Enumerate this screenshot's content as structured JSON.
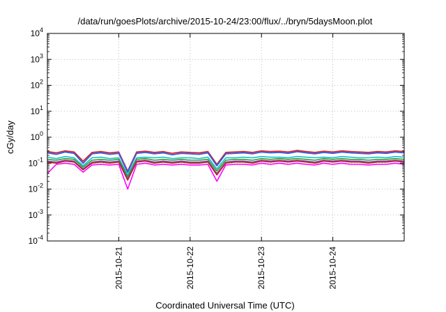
{
  "chart_data": {
    "type": "line",
    "title": "/data/run/goesPlots/archive/2015-10-24/23:00/flux/../bryn/5daysMoon.plot",
    "xlabel": "Coordinated Universal Time (UTC)",
    "ylabel": "cGy/day",
    "yscale": "log",
    "ylim": [
      0.0001,
      10000
    ],
    "xlim": [
      "2015-10-20T00:00",
      "2015-10-25T00:00"
    ],
    "grid": true,
    "y_ticks": [
      {
        "base": "10",
        "exp": "-4"
      },
      {
        "base": "10",
        "exp": "-3"
      },
      {
        "base": "10",
        "exp": "-2"
      },
      {
        "base": "10",
        "exp": "-1"
      },
      {
        "base": "10",
        "exp": "0"
      },
      {
        "base": "10",
        "exp": "1"
      },
      {
        "base": "10",
        "exp": "2"
      },
      {
        "base": "10",
        "exp": "3"
      },
      {
        "base": "10",
        "exp": "4"
      }
    ],
    "x_ticks": [
      "2015-10-21",
      "2015-10-22",
      "2015-10-23",
      "2015-10-24"
    ],
    "x": [
      "2015-10-20T00:00",
      "2015-10-20T03:00",
      "2015-10-20T06:00",
      "2015-10-20T09:00",
      "2015-10-20T12:00",
      "2015-10-20T15:00",
      "2015-10-20T18:00",
      "2015-10-20T21:00",
      "2015-10-21T00:00",
      "2015-10-21T03:00",
      "2015-10-21T06:00",
      "2015-10-21T09:00",
      "2015-10-21T12:00",
      "2015-10-21T15:00",
      "2015-10-21T18:00",
      "2015-10-21T21:00",
      "2015-10-22T00:00",
      "2015-10-22T03:00",
      "2015-10-22T06:00",
      "2015-10-22T09:00",
      "2015-10-22T12:00",
      "2015-10-22T15:00",
      "2015-10-22T18:00",
      "2015-10-22T21:00",
      "2015-10-23T00:00",
      "2015-10-23T03:00",
      "2015-10-23T06:00",
      "2015-10-23T09:00",
      "2015-10-23T12:00",
      "2015-10-23T15:00",
      "2015-10-23T18:00",
      "2015-10-23T21:00",
      "2015-10-24T00:00",
      "2015-10-24T03:00",
      "2015-10-24T06:00",
      "2015-10-24T09:00",
      "2015-10-24T12:00",
      "2015-10-24T15:00",
      "2015-10-24T18:00",
      "2015-10-24T21:00",
      "2015-10-25T00:00"
    ],
    "series": [
      {
        "color": "#e41a1c",
        "values": [
          0.28,
          0.25,
          0.3,
          0.27,
          0.12,
          0.26,
          0.28,
          0.25,
          0.27,
          0.05,
          0.27,
          0.29,
          0.26,
          0.28,
          0.24,
          0.27,
          0.26,
          0.25,
          0.28,
          0.09,
          0.26,
          0.27,
          0.28,
          0.26,
          0.3,
          0.28,
          0.29,
          0.27,
          0.31,
          0.28,
          0.26,
          0.29,
          0.27,
          0.3,
          0.28,
          0.27,
          0.26,
          0.28,
          0.27,
          0.3,
          0.28
        ]
      },
      {
        "color": "#3a5bd9",
        "values": [
          0.25,
          0.22,
          0.27,
          0.24,
          0.1,
          0.23,
          0.25,
          0.22,
          0.24,
          0.045,
          0.24,
          0.26,
          0.23,
          0.25,
          0.21,
          0.24,
          0.23,
          0.22,
          0.25,
          0.08,
          0.23,
          0.24,
          0.25,
          0.23,
          0.27,
          0.25,
          0.26,
          0.24,
          0.28,
          0.25,
          0.23,
          0.26,
          0.24,
          0.27,
          0.25,
          0.24,
          0.23,
          0.25,
          0.24,
          0.27,
          0.25
        ]
      },
      {
        "color": "#17becf",
        "values": [
          0.17,
          0.15,
          0.18,
          0.16,
          0.08,
          0.16,
          0.17,
          0.15,
          0.16,
          0.035,
          0.16,
          0.17,
          0.16,
          0.17,
          0.15,
          0.16,
          0.16,
          0.15,
          0.17,
          0.06,
          0.16,
          0.16,
          0.17,
          0.16,
          0.18,
          0.17,
          0.17,
          0.16,
          0.18,
          0.17,
          0.16,
          0.17,
          0.16,
          0.18,
          0.17,
          0.16,
          0.16,
          0.17,
          0.16,
          0.18,
          0.17
        ]
      },
      {
        "color": "#2ca02c",
        "values": [
          0.14,
          0.13,
          0.15,
          0.14,
          0.07,
          0.13,
          0.14,
          0.13,
          0.14,
          0.03,
          0.14,
          0.15,
          0.13,
          0.14,
          0.13,
          0.14,
          0.13,
          0.13,
          0.14,
          0.05,
          0.13,
          0.14,
          0.14,
          0.13,
          0.15,
          0.14,
          0.15,
          0.14,
          0.15,
          0.14,
          0.13,
          0.15,
          0.14,
          0.15,
          0.14,
          0.14,
          0.13,
          0.14,
          0.14,
          0.15,
          0.14
        ]
      },
      {
        "color": "#8e44ad",
        "values": [
          0.12,
          0.11,
          0.13,
          0.12,
          0.06,
          0.11,
          0.12,
          0.11,
          0.12,
          0.025,
          0.12,
          0.13,
          0.11,
          0.12,
          0.11,
          0.12,
          0.11,
          0.11,
          0.12,
          0.04,
          0.11,
          0.12,
          0.12,
          0.11,
          0.13,
          0.12,
          0.13,
          0.12,
          0.13,
          0.12,
          0.11,
          0.13,
          0.12,
          0.13,
          0.12,
          0.12,
          0.11,
          0.12,
          0.12,
          0.13,
          0.12
        ]
      },
      {
        "color": "#b22222",
        "values": [
          0.11,
          0.1,
          0.12,
          0.11,
          0.055,
          0.1,
          0.11,
          0.1,
          0.11,
          0.022,
          0.11,
          0.12,
          0.1,
          0.11,
          0.1,
          0.11,
          0.1,
          0.1,
          0.11,
          0.035,
          0.1,
          0.11,
          0.11,
          0.1,
          0.12,
          0.11,
          0.12,
          0.11,
          0.12,
          0.11,
          0.1,
          0.12,
          0.11,
          0.12,
          0.11,
          0.11,
          0.1,
          0.11,
          0.11,
          0.12,
          0.11
        ]
      },
      {
        "color": "#ff00ff",
        "values": [
          0.04,
          0.09,
          0.1,
          0.09,
          0.045,
          0.085,
          0.09,
          0.085,
          0.09,
          0.01,
          0.09,
          0.1,
          0.085,
          0.09,
          0.085,
          0.09,
          0.085,
          0.085,
          0.09,
          0.02,
          0.085,
          0.09,
          0.09,
          0.085,
          0.1,
          0.09,
          0.1,
          0.09,
          0.1,
          0.09,
          0.085,
          0.1,
          0.09,
          0.1,
          0.09,
          0.09,
          0.085,
          0.09,
          0.09,
          0.1,
          0.09
        ]
      }
    ]
  }
}
